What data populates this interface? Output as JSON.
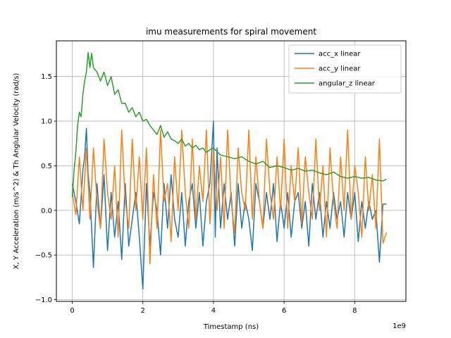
{
  "chart_data": {
    "type": "line",
    "title": "imu measurements for spiral movement",
    "xlabel": "Timestamp (ns)",
    "ylabel": "X, Y Acceleration (m/s^2) & Th Anglular Velocity (rad/s)",
    "x_offset_label": "1e9",
    "xlim": [
      -0.45,
      9.45
    ],
    "ylim": [
      -1.02,
      1.9
    ],
    "x_ticks": [
      0,
      2,
      4,
      6,
      8
    ],
    "x_tick_labels": [
      "0",
      "2",
      "4",
      "6",
      "8"
    ],
    "y_ticks": [
      -1.0,
      -0.5,
      0.0,
      0.5,
      1.0,
      1.5
    ],
    "y_tick_labels": [
      "−1.0",
      "−0.5",
      "0.0",
      "0.5",
      "1.0",
      "1.5"
    ],
    "grid": true,
    "legend_position": "top-right",
    "series": [
      {
        "name": "acc_x linear",
        "color": "#1f77b4",
        "x": [
          0,
          0.1,
          0.2,
          0.3,
          0.35,
          0.4,
          0.45,
          0.5,
          0.6,
          0.7,
          0.8,
          0.9,
          1.0,
          1.1,
          1.2,
          1.3,
          1.4,
          1.5,
          1.6,
          1.7,
          1.8,
          1.9,
          2.0,
          2.1,
          2.2,
          2.3,
          2.4,
          2.5,
          2.6,
          2.7,
          2.8,
          2.9,
          3.0,
          3.1,
          3.2,
          3.3,
          3.4,
          3.5,
          3.6,
          3.7,
          3.8,
          3.9,
          4.0,
          4.05,
          4.1,
          4.2,
          4.3,
          4.4,
          4.5,
          4.6,
          4.7,
          4.8,
          4.9,
          5.0,
          5.1,
          5.2,
          5.3,
          5.4,
          5.5,
          5.6,
          5.7,
          5.8,
          5.9,
          6.0,
          6.1,
          6.2,
          6.3,
          6.4,
          6.5,
          6.6,
          6.7,
          6.8,
          6.9,
          7.0,
          7.1,
          7.2,
          7.3,
          7.4,
          7.5,
          7.6,
          7.7,
          7.8,
          7.9,
          8.0,
          8.1,
          8.2,
          8.3,
          8.4,
          8.5,
          8.6,
          8.7,
          8.8,
          8.9
        ],
        "values": [
          0.3,
          0.1,
          -0.15,
          0.45,
          0.6,
          0.92,
          0.4,
          0.2,
          -0.64,
          0.3,
          -0.2,
          0.4,
          -0.45,
          0.2,
          -0.3,
          0.1,
          -0.55,
          0.3,
          -0.4,
          -0.1,
          0.2,
          -0.3,
          -0.88,
          0.3,
          -0.4,
          0.2,
          0.0,
          -0.5,
          0.3,
          -0.2,
          0.4,
          -0.1,
          -0.3,
          0.2,
          -0.4,
          0.1,
          0.3,
          -0.2,
          0.2,
          -0.4,
          0.1,
          0.3,
          1.0,
          -0.3,
          0.7,
          -0.2,
          0.3,
          -0.1,
          0.2,
          -0.4,
          0.3,
          -0.2,
          0.1,
          -0.1,
          -0.45,
          0.3,
          0.1,
          -0.2,
          0.2,
          -0.1,
          0.3,
          -0.35,
          0.1,
          -0.2,
          0.2,
          -0.3,
          0.1,
          0.2,
          -0.2,
          0.1,
          -0.4,
          0.3,
          -0.1,
          0.2,
          -0.3,
          0.1,
          -0.2,
          0.2,
          -0.1,
          0.1,
          -0.3,
          0.2,
          -0.1,
          0.2,
          -0.35,
          0.1,
          -0.2,
          0.1,
          -0.1,
          0.0,
          -0.58,
          0.07,
          0.07
        ]
      },
      {
        "name": "acc_y linear",
        "color": "#ff7f0e",
        "x": [
          0,
          0.1,
          0.2,
          0.3,
          0.4,
          0.5,
          0.6,
          0.7,
          0.8,
          0.9,
          1.0,
          1.1,
          1.2,
          1.3,
          1.4,
          1.5,
          1.6,
          1.7,
          1.8,
          1.9,
          2.0,
          2.1,
          2.2,
          2.3,
          2.4,
          2.5,
          2.6,
          2.7,
          2.8,
          2.9,
          3.0,
          3.1,
          3.2,
          3.3,
          3.4,
          3.5,
          3.6,
          3.7,
          3.8,
          3.9,
          4.0,
          4.1,
          4.2,
          4.3,
          4.4,
          4.5,
          4.6,
          4.7,
          4.8,
          4.9,
          5.0,
          5.1,
          5.2,
          5.3,
          5.4,
          5.5,
          5.6,
          5.7,
          5.8,
          5.9,
          6.0,
          6.1,
          6.2,
          6.3,
          6.4,
          6.5,
          6.6,
          6.7,
          6.8,
          6.9,
          7.0,
          7.1,
          7.2,
          7.3,
          7.4,
          7.5,
          7.6,
          7.7,
          7.8,
          7.9,
          8.0,
          8.1,
          8.2,
          8.3,
          8.4,
          8.5,
          8.6,
          8.7,
          8.8,
          8.9
        ],
        "values": [
          0.2,
          -0.05,
          0.6,
          0.0,
          0.7,
          -0.1,
          0.7,
          0.1,
          -0.2,
          0.8,
          0.2,
          -0.1,
          0.5,
          -0.3,
          0.9,
          0.1,
          -0.2,
          0.8,
          0.0,
          0.6,
          -0.1,
          0.7,
          -0.6,
          0.4,
          -0.2,
          0.9,
          0.1,
          0.3,
          -0.35,
          0.6,
          0.0,
          0.9,
          0.2,
          -0.2,
          0.8,
          -0.1,
          0.5,
          0.1,
          0.9,
          -0.15,
          0.7,
          0.0,
          0.6,
          -0.2,
          0.9,
          0.1,
          -0.25,
          0.7,
          0.2,
          0.0,
          0.9,
          -0.1,
          0.6,
          0.1,
          -0.2,
          0.8,
          0.2,
          -0.1,
          0.6,
          0.0,
          0.8,
          -0.2,
          0.5,
          0.1,
          0.7,
          -0.15,
          0.6,
          0.2,
          -0.1,
          0.8,
          0.0,
          0.5,
          -0.3,
          0.7,
          0.1,
          -0.2,
          0.6,
          0.0,
          0.9,
          -0.1,
          0.5,
          0.2,
          -0.3,
          0.6,
          0.0,
          0.4,
          -0.2,
          0.8,
          -0.37,
          -0.25
        ]
      },
      {
        "name": "angular_z linear",
        "color": "#2ca02c",
        "x": [
          0,
          0.05,
          0.1,
          0.15,
          0.2,
          0.25,
          0.3,
          0.35,
          0.4,
          0.45,
          0.5,
          0.55,
          0.6,
          0.7,
          0.8,
          0.9,
          1.0,
          1.1,
          1.2,
          1.3,
          1.4,
          1.5,
          1.6,
          1.7,
          1.8,
          1.9,
          2.0,
          2.1,
          2.2,
          2.3,
          2.4,
          2.5,
          2.6,
          2.7,
          2.8,
          2.9,
          3.0,
          3.1,
          3.2,
          3.3,
          3.4,
          3.5,
          3.6,
          3.7,
          3.8,
          3.9,
          4.0,
          4.2,
          4.4,
          4.6,
          4.8,
          5.0,
          5.2,
          5.4,
          5.6,
          5.8,
          6.0,
          6.2,
          6.4,
          6.6,
          6.8,
          7.0,
          7.2,
          7.4,
          7.6,
          7.8,
          8.0,
          8.2,
          8.4,
          8.6,
          8.8,
          8.9
        ],
        "values": [
          0.15,
          0.45,
          0.65,
          0.95,
          1.1,
          1.05,
          1.3,
          1.45,
          1.55,
          1.77,
          1.6,
          1.76,
          1.6,
          1.55,
          1.45,
          1.55,
          1.4,
          1.5,
          1.3,
          1.35,
          1.2,
          1.2,
          1.1,
          1.15,
          1.05,
          1.1,
          1.0,
          1.02,
          0.95,
          0.9,
          0.85,
          0.95,
          0.82,
          0.88,
          0.8,
          0.78,
          0.75,
          0.8,
          0.72,
          0.75,
          0.7,
          0.73,
          0.68,
          0.7,
          0.65,
          0.68,
          0.7,
          0.62,
          0.6,
          0.58,
          0.6,
          0.55,
          0.52,
          0.55,
          0.48,
          0.5,
          0.48,
          0.45,
          0.47,
          0.44,
          0.45,
          0.42,
          0.4,
          0.43,
          0.38,
          0.36,
          0.38,
          0.36,
          0.37,
          0.34,
          0.33,
          0.35
        ]
      }
    ]
  }
}
